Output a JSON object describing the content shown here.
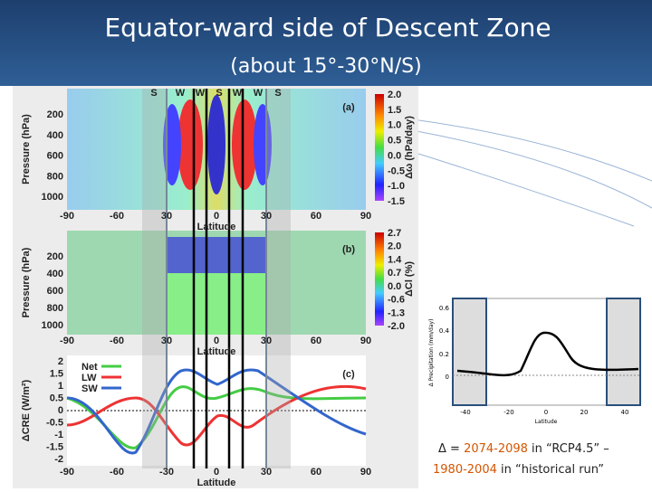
{
  "slide": {
    "title": "Equator-ward side of Descent Zone",
    "subtitle": "(about 15°-30°N/S)",
    "markers": [
      "S",
      "W",
      "W",
      "S",
      "W",
      "W",
      "S"
    ],
    "caption": {
      "line1": [
        "Δ = ",
        "2074-2098",
        " in “RCP4.5” –"
      ],
      "line2": [
        "1980-2004",
        " in “historical run”"
      ]
    }
  },
  "figure": {
    "panels": [
      {
        "label": "(a)",
        "ylabel": "Pressure (hPa)",
        "yticks": [
          "200",
          "400",
          "600",
          "800",
          "1000"
        ],
        "xticks": [
          "-90",
          "-60",
          "30",
          "0",
          "30",
          "60",
          "90"
        ],
        "xlabel": "Latitude",
        "colorbar_label": "Δω (hPa/day)",
        "colorbar_ticks": [
          "2.0",
          "1.5",
          "1.0",
          "0.5",
          "0.0",
          "-0.5",
          "-1.0",
          "-1.5"
        ]
      },
      {
        "label": "(b)",
        "ylabel": "Pressure (hPa)",
        "yticks": [
          "200",
          "400",
          "600",
          "800",
          "1000"
        ],
        "xticks": [
          "-90",
          "-60",
          "30",
          "0",
          "30",
          "60",
          "90"
        ],
        "xlabel": "Latitude",
        "colorbar_label": "ΔCl (%)",
        "colorbar_ticks": [
          "2.7",
          "2.0",
          "1.4",
          "0.7",
          "0.0",
          "-0.6",
          "-1.3",
          "-2.0"
        ]
      },
      {
        "label": "(c)",
        "ylabel": "ΔCRE (W/m²)",
        "yticks": [
          "2",
          "1.5",
          "1",
          "0.5",
          "0",
          "-0.5",
          "-1",
          "-1.5",
          "-2"
        ],
        "xticks": [
          "-90",
          "-60",
          "-30",
          "0",
          "30",
          "60",
          "90"
        ],
        "xlabel": "Latitude",
        "legend": [
          "Net",
          "LW",
          "SW"
        ]
      }
    ],
    "inset": {
      "ylabel": "Δ Precipitation (mm/day)",
      "yticks": [
        "0.6",
        "0.4",
        "0.2",
        "0"
      ],
      "xticks": [
        "-40",
        "-20",
        "0",
        "20",
        "40"
      ],
      "xlabel": "Latitude"
    }
  }
}
